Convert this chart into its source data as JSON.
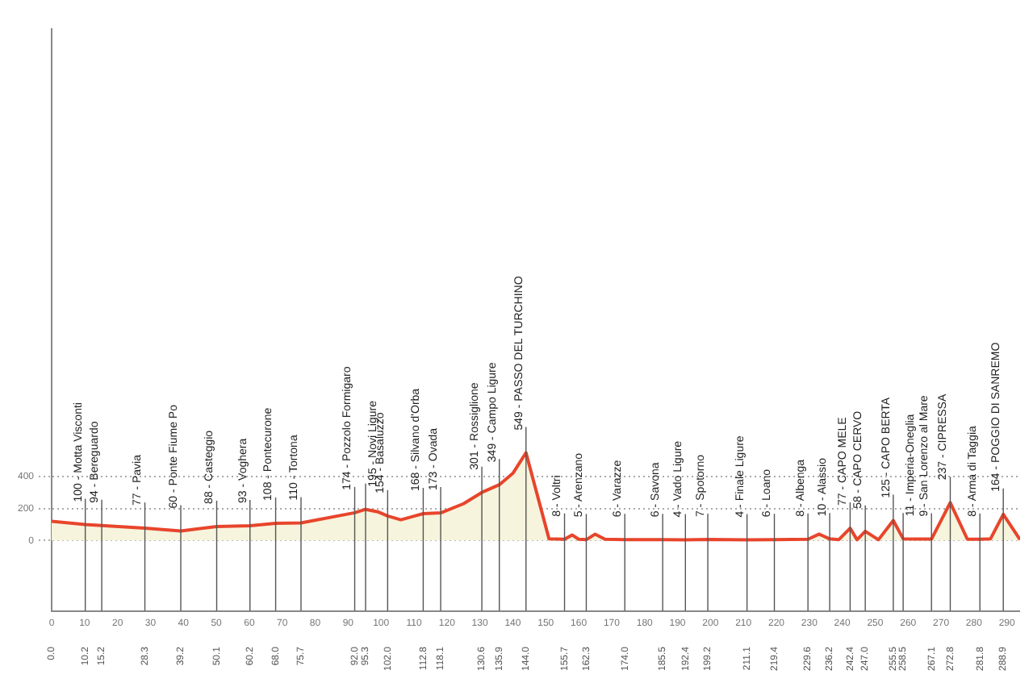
{
  "chart_data": {
    "type": "area",
    "x": [
      0,
      10.2,
      15.2,
      28.3,
      39.2,
      50.1,
      60.2,
      68.0,
      75.7,
      92.0,
      95.3,
      99,
      102.0,
      106,
      112.8,
      118.1,
      125,
      130.6,
      135.9,
      140,
      144.0,
      151,
      155.7,
      158,
      160,
      162.3,
      165,
      168,
      174.0,
      185.5,
      192.4,
      199.2,
      211.1,
      219.4,
      229.6,
      233,
      236.2,
      239,
      242.4,
      244.5,
      247.0,
      251,
      255.5,
      258.5,
      262,
      267.1,
      272.8,
      278,
      281.8,
      285,
      288.9,
      294
    ],
    "series": [
      {
        "color": "#e8452c",
        "values": [
          120,
          100,
          94,
          77,
          60,
          88,
          93,
          108,
          110,
          174,
          195,
          180,
          154,
          130,
          168,
          173,
          230,
          301,
          349,
          420,
          549,
          10,
          8,
          35,
          8,
          5,
          40,
          8,
          6,
          6,
          4,
          7,
          4,
          6,
          8,
          40,
          10,
          6,
          77,
          5,
          58,
          5,
          125,
          11,
          9,
          9,
          237,
          8,
          8,
          10,
          164,
          5
        ]
      }
    ],
    "xlim": [
      0,
      294
    ],
    "xticks": [
      0,
      10,
      20,
      30,
      40,
      50,
      60,
      70,
      80,
      90,
      100,
      110,
      120,
      130,
      140,
      150,
      160,
      170,
      180,
      190,
      200,
      210,
      220,
      230,
      240,
      250,
      260,
      270,
      280,
      290
    ],
    "x2lim": [
      0,
      294
    ],
    "x2ticks": [
      {
        "value": 0,
        "label": "0.0"
      },
      10.2,
      15.2,
      28.3,
      39.2,
      50.1,
      60.2,
      {
        "value": 68,
        "label": "68.0"
      },
      75.7,
      {
        "value": 92,
        "label": "92.0"
      },
      95.3,
      {
        "value": 102,
        "label": "102.0"
      },
      112.8,
      118.1,
      130.6,
      135.9,
      {
        "value": 144,
        "label": "144.0"
      },
      155.7,
      162.3,
      {
        "value": 174,
        "label": "174.0"
      },
      185.5,
      192.4,
      199.2,
      211.1,
      219.4,
      229.6,
      236.2,
      242.4,
      {
        "value": 247,
        "label": "247.0"
      },
      255.5,
      258.5,
      267.1,
      272.8,
      281.8,
      288.9
    ],
    "ylim": [
      -440,
      3200
    ],
    "yticks": [
      0,
      200,
      400
    ],
    "grid": "y",
    "annotations": [
      {
        "text": "100 - Motta Visconti",
        "x": 10.2,
        "y": 100
      },
      {
        "text": "94 - Bereguardo",
        "x": 15.2,
        "y": 94
      },
      {
        "text": "77 - Pavia",
        "x": 28.3,
        "y": 77
      },
      {
        "text": "60 - Ponte Fiume Po",
        "x": 39.2,
        "y": 60
      },
      {
        "text": "88 - Casteggio",
        "x": 50.1,
        "y": 88
      },
      {
        "text": "93 - Voghera",
        "x": 60.2,
        "y": 93
      },
      {
        "text": "108 - Pontecurone",
        "x": 68.0,
        "y": 108
      },
      {
        "text": "110 - Tortona",
        "x": 75.7,
        "y": 110
      },
      {
        "text": "174 - Pozzolo Formigaro",
        "x": 92.0,
        "y": 174
      },
      {
        "text": "195 - Novi Ligure",
        "x": 95.3,
        "y": 195
      },
      {
        "text": "154 - Basaluzzo",
        "x": 102.0,
        "y": 154
      },
      {
        "text": "168 - Silvano d'Orba",
        "x": 112.8,
        "y": 168
      },
      {
        "text": "173 - Ovada",
        "x": 118.1,
        "y": 173
      },
      {
        "text": "301 - Rossiglione",
        "x": 130.6,
        "y": 301
      },
      {
        "text": "349 - Campo Ligure",
        "x": 135.9,
        "y": 349
      },
      {
        "text": "549 - PASSO DEL TURCHINO",
        "x": 144.0,
        "y": 549
      },
      {
        "text": "8 - Voltri",
        "x": 155.7,
        "y": 8
      },
      {
        "text": "5 - Arenzano",
        "x": 162.3,
        "y": 5
      },
      {
        "text": "6 - Varazze",
        "x": 174.0,
        "y": 6
      },
      {
        "text": "6 - Savona",
        "x": 185.5,
        "y": 6
      },
      {
        "text": "4 - Vado Ligure",
        "x": 192.4,
        "y": 4
      },
      {
        "text": "7 - Spotorno",
        "x": 199.2,
        "y": 7
      },
      {
        "text": "4 - Finale Ligure",
        "x": 211.1,
        "y": 4
      },
      {
        "text": "6 - Loano",
        "x": 219.4,
        "y": 6
      },
      {
        "text": "8 - Albenga",
        "x": 229.6,
        "y": 8
      },
      {
        "text": "10 - Alassio",
        "x": 236.2,
        "y": 10
      },
      {
        "text": "77 - CAPO MELE",
        "x": 242.4,
        "y": 77
      },
      {
        "text": "58 - CAPO CERVO",
        "x": 247.0,
        "y": 58
      },
      {
        "text": "125 - CAPO BERTA",
        "x": 255.5,
        "y": 125
      },
      {
        "text": "11 - Imperia-Oneglia",
        "x": 258.5,
        "y": 11
      },
      {
        "text": "9 - San Lorenzo al Mare",
        "x": 267.1,
        "y": 9
      },
      {
        "text": "237 - CIPRESSA",
        "x": 272.8,
        "y": 237
      },
      {
        "text": "8 - Arma di Taggia",
        "x": 281.8,
        "y": 8
      },
      {
        "text": "164 - POGGIO DI SANREMO",
        "x": 288.9,
        "y": 164
      }
    ]
  }
}
